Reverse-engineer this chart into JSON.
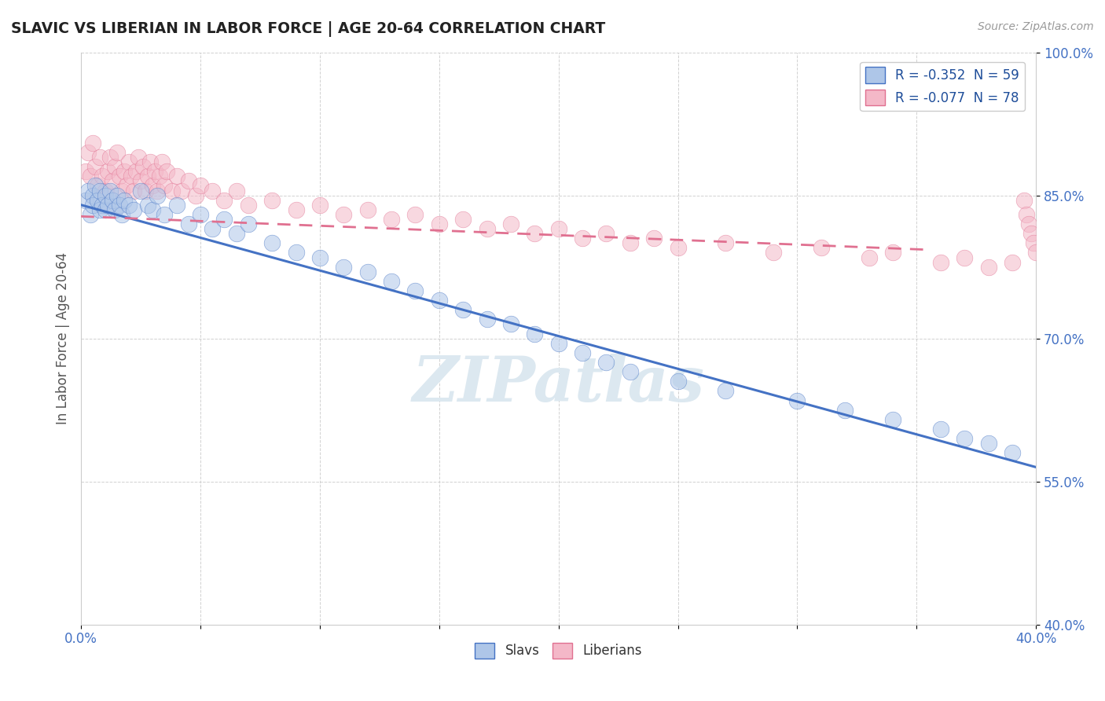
{
  "title": "SLAVIC VS LIBERIAN IN LABOR FORCE | AGE 20-64 CORRELATION CHART",
  "source_text": "Source: ZipAtlas.com",
  "ylabel": "In Labor Force | Age 20-64",
  "xlim": [
    0.0,
    0.4
  ],
  "ylim": [
    0.4,
    1.0
  ],
  "xticks": [
    0.0,
    0.05,
    0.1,
    0.15,
    0.2,
    0.25,
    0.3,
    0.35,
    0.4
  ],
  "yticks": [
    0.4,
    0.55,
    0.7,
    0.85,
    1.0
  ],
  "slavs_R": -0.352,
  "slavs_N": 59,
  "liberians_R": -0.077,
  "liberians_N": 78,
  "slavs_color": "#aec6e8",
  "liberians_color": "#f4b8c8",
  "slavs_line_color": "#4472c4",
  "liberians_line_color": "#e07090",
  "legend_R_color": "#1f4e9a",
  "background_color": "#ffffff",
  "grid_color": "#cccccc",
  "watermark_color": "#dce8f0",
  "tick_color": "#4472c4",
  "slavs_x": [
    0.002,
    0.003,
    0.004,
    0.005,
    0.005,
    0.006,
    0.007,
    0.008,
    0.008,
    0.009,
    0.01,
    0.01,
    0.011,
    0.012,
    0.013,
    0.014,
    0.015,
    0.016,
    0.017,
    0.018,
    0.02,
    0.022,
    0.025,
    0.028,
    0.03,
    0.032,
    0.035,
    0.04,
    0.045,
    0.05,
    0.055,
    0.06,
    0.065,
    0.07,
    0.08,
    0.09,
    0.1,
    0.11,
    0.12,
    0.13,
    0.14,
    0.15,
    0.16,
    0.17,
    0.18,
    0.19,
    0.2,
    0.21,
    0.22,
    0.23,
    0.25,
    0.27,
    0.3,
    0.32,
    0.34,
    0.36,
    0.37,
    0.38,
    0.39
  ],
  "slavs_y": [
    0.845,
    0.855,
    0.83,
    0.85,
    0.84,
    0.86,
    0.845,
    0.835,
    0.855,
    0.84,
    0.835,
    0.85,
    0.84,
    0.855,
    0.845,
    0.835,
    0.85,
    0.84,
    0.83,
    0.845,
    0.84,
    0.835,
    0.855,
    0.84,
    0.835,
    0.85,
    0.83,
    0.84,
    0.82,
    0.83,
    0.815,
    0.825,
    0.81,
    0.82,
    0.8,
    0.79,
    0.785,
    0.775,
    0.77,
    0.76,
    0.75,
    0.74,
    0.73,
    0.72,
    0.715,
    0.705,
    0.695,
    0.685,
    0.675,
    0.665,
    0.655,
    0.645,
    0.635,
    0.625,
    0.615,
    0.605,
    0.595,
    0.59,
    0.58
  ],
  "liberians_x": [
    0.002,
    0.003,
    0.004,
    0.005,
    0.006,
    0.007,
    0.008,
    0.009,
    0.01,
    0.011,
    0.012,
    0.013,
    0.014,
    0.015,
    0.016,
    0.017,
    0.018,
    0.019,
    0.02,
    0.021,
    0.022,
    0.023,
    0.024,
    0.025,
    0.026,
    0.027,
    0.028,
    0.029,
    0.03,
    0.031,
    0.032,
    0.033,
    0.034,
    0.035,
    0.036,
    0.038,
    0.04,
    0.042,
    0.045,
    0.048,
    0.05,
    0.055,
    0.06,
    0.065,
    0.07,
    0.08,
    0.09,
    0.1,
    0.11,
    0.12,
    0.13,
    0.14,
    0.15,
    0.16,
    0.17,
    0.18,
    0.19,
    0.2,
    0.21,
    0.22,
    0.23,
    0.24,
    0.25,
    0.27,
    0.29,
    0.31,
    0.33,
    0.34,
    0.36,
    0.37,
    0.38,
    0.39,
    0.395,
    0.396,
    0.397,
    0.398,
    0.399,
    0.4
  ],
  "liberians_y": [
    0.875,
    0.895,
    0.87,
    0.905,
    0.88,
    0.86,
    0.89,
    0.87,
    0.855,
    0.875,
    0.89,
    0.865,
    0.88,
    0.895,
    0.87,
    0.855,
    0.875,
    0.86,
    0.885,
    0.87,
    0.855,
    0.875,
    0.89,
    0.865,
    0.88,
    0.855,
    0.87,
    0.885,
    0.86,
    0.875,
    0.855,
    0.87,
    0.885,
    0.86,
    0.875,
    0.855,
    0.87,
    0.855,
    0.865,
    0.85,
    0.86,
    0.855,
    0.845,
    0.855,
    0.84,
    0.845,
    0.835,
    0.84,
    0.83,
    0.835,
    0.825,
    0.83,
    0.82,
    0.825,
    0.815,
    0.82,
    0.81,
    0.815,
    0.805,
    0.81,
    0.8,
    0.805,
    0.795,
    0.8,
    0.79,
    0.795,
    0.785,
    0.79,
    0.78,
    0.785,
    0.775,
    0.78,
    0.845,
    0.83,
    0.82,
    0.81,
    0.8,
    0.79
  ],
  "slavs_line_y0": 0.84,
  "slavs_line_y1": 0.565,
  "liberians_line_y0": 0.828,
  "liberians_line_y1": 0.793,
  "liberians_line_x1": 0.355
}
